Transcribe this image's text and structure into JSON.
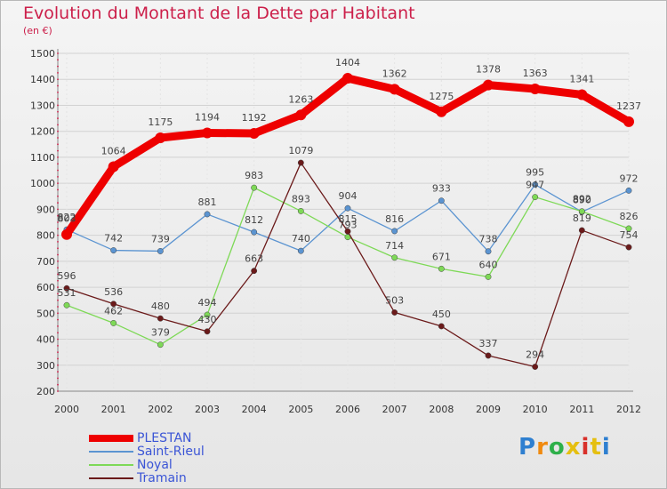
{
  "header": {
    "title": "Evolution du Montant de la Dette par Habitant",
    "unit": "(en €)"
  },
  "logo": {
    "letters": [
      "P",
      "r",
      "o",
      "x",
      "i",
      "t",
      "i"
    ],
    "colors": [
      "#2e7fd0",
      "#f08a10",
      "#2eb04a",
      "#e5bf10",
      "#d8302a",
      "#e5bf10",
      "#2e7fd0"
    ]
  },
  "chart_data": {
    "type": "line",
    "title": "Evolution du Montant de la Dette par Habitant",
    "ylabel": "(en €)",
    "xlabel": "",
    "x": [
      "2000",
      "2001",
      "2002",
      "2003",
      "2004",
      "2005",
      "2006",
      "2007",
      "2008",
      "2009",
      "2010",
      "2011",
      "2012"
    ],
    "ylim": [
      200,
      1500
    ],
    "yticks": [
      200,
      300,
      400,
      500,
      600,
      700,
      800,
      900,
      1000,
      1100,
      1200,
      1300,
      1400,
      1500
    ],
    "grid": "horizontal",
    "legend_position": "bottom-left",
    "series": [
      {
        "name": "PLESTAN",
        "color": "#ee0000",
        "values": [
          803,
          1064,
          1175,
          1194,
          1192,
          1263,
          1404,
          1362,
          1275,
          1378,
          1363,
          1341,
          1237
        ]
      },
      {
        "name": "Saint-Rieul",
        "color": "#5b94d1",
        "values": [
          822,
          742,
          739,
          881,
          812,
          740,
          904,
          816,
          933,
          738,
          995,
          890,
          972
        ]
      },
      {
        "name": "Noyal",
        "color": "#7ed957",
        "values": [
          531,
          462,
          379,
          494,
          983,
          893,
          793,
          714,
          671,
          640,
          947,
          892,
          826
        ]
      },
      {
        "name": "Tramain",
        "color": "#6b1a1a",
        "values": [
          596,
          536,
          480,
          430,
          663,
          1079,
          815,
          503,
          450,
          337,
          294,
          819,
          754
        ]
      }
    ]
  }
}
